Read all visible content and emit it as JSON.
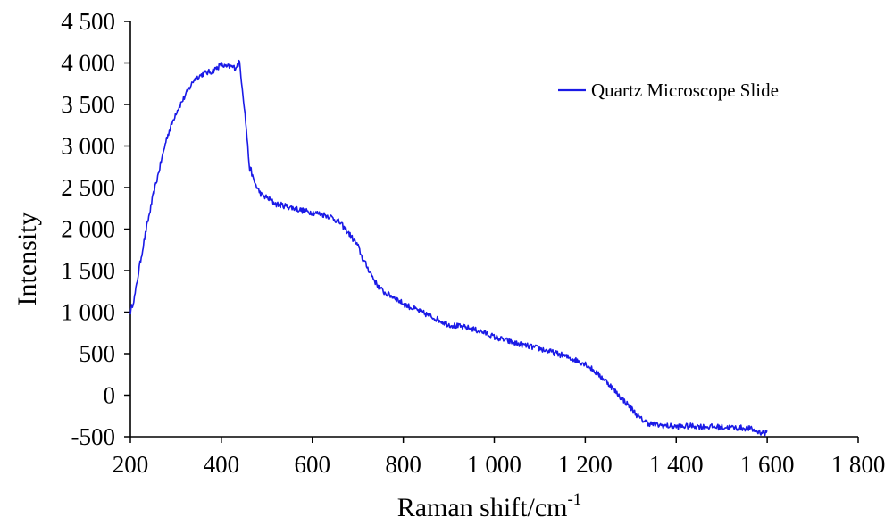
{
  "chart_data": {
    "type": "line",
    "xlabel": "Raman shift/cm",
    "xlabel_sup": "-1",
    "ylabel": "Intensity",
    "xlim": [
      200,
      1800
    ],
    "ylim": [
      -500,
      4500
    ],
    "x_ticks": [
      200,
      400,
      600,
      800,
      1000,
      1200,
      1400,
      1600,
      1800
    ],
    "x_tick_labels": [
      "200",
      "400",
      "600",
      "800",
      "1 000",
      "1 200",
      "1 400",
      "1 600",
      "1 800"
    ],
    "y_ticks": [
      -500,
      0,
      500,
      1000,
      1500,
      2000,
      2500,
      3000,
      3500,
      4000,
      4500
    ],
    "y_tick_labels": [
      "-500",
      "0",
      "500",
      "1 000",
      "1 500",
      "2 000",
      "2 500",
      "3 000",
      "3 500",
      "4 000",
      "4 500"
    ],
    "grid": false,
    "legend_position": "top-right",
    "series": [
      {
        "name": "Quartz Microscope Slide",
        "color": "#1a1ae6",
        "x": [
          200,
          210,
          220,
          235,
          250,
          265,
          280,
          300,
          320,
          340,
          360,
          380,
          400,
          410,
          420,
          430,
          440,
          450,
          455,
          460,
          463,
          465,
          470,
          480,
          490,
          500,
          520,
          540,
          560,
          580,
          600,
          620,
          640,
          660,
          680,
          700,
          710,
          720,
          730,
          740,
          750,
          760,
          780,
          800,
          820,
          840,
          860,
          880,
          900,
          920,
          950,
          980,
          1000,
          1050,
          1100,
          1150,
          1200,
          1220,
          1250,
          1270,
          1300,
          1320,
          1340,
          1360,
          1380,
          1400,
          1420,
          1440,
          1460,
          1480,
          1500,
          1520,
          1540,
          1560,
          1570,
          1580,
          1590,
          1595,
          1600
        ],
        "y": [
          1000,
          1200,
          1550,
          2000,
          2400,
          2750,
          3100,
          3400,
          3600,
          3800,
          3870,
          3900,
          3980,
          3950,
          3960,
          3940,
          4010,
          3500,
          3200,
          2850,
          2700,
          2720,
          2600,
          2480,
          2400,
          2380,
          2300,
          2280,
          2250,
          2220,
          2200,
          2180,
          2150,
          2080,
          1950,
          1800,
          1650,
          1550,
          1450,
          1350,
          1280,
          1230,
          1180,
          1100,
          1050,
          1000,
          950,
          900,
          850,
          830,
          800,
          750,
          700,
          620,
          560,
          480,
          380,
          290,
          150,
          20,
          -150,
          -280,
          -340,
          -360,
          -370,
          -380,
          -375,
          -370,
          -380,
          -380,
          -385,
          -390,
          -395,
          -400,
          -420,
          -440,
          -450,
          -455,
          -460
        ]
      }
    ]
  }
}
